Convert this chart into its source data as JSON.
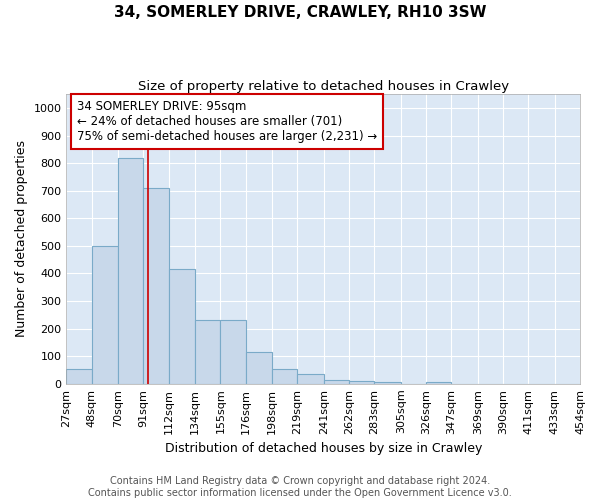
{
  "title": "34, SOMERLEY DRIVE, CRAWLEY, RH10 3SW",
  "subtitle": "Size of property relative to detached houses in Crawley",
  "xlabel": "Distribution of detached houses by size in Crawley",
  "ylabel": "Number of detached properties",
  "bin_labels": [
    "27sqm",
    "48sqm",
    "70sqm",
    "91sqm",
    "112sqm",
    "134sqm",
    "155sqm",
    "176sqm",
    "198sqm",
    "219sqm",
    "241sqm",
    "262sqm",
    "283sqm",
    "305sqm",
    "326sqm",
    "347sqm",
    "369sqm",
    "390sqm",
    "411sqm",
    "433sqm",
    "454sqm"
  ],
  "bin_edges": [
    27,
    48,
    70,
    91,
    112,
    134,
    155,
    176,
    198,
    219,
    241,
    262,
    283,
    305,
    326,
    347,
    369,
    390,
    411,
    433,
    454
  ],
  "bar_heights": [
    55,
    500,
    820,
    710,
    415,
    230,
    230,
    115,
    55,
    35,
    15,
    10,
    5,
    0,
    5,
    0,
    0,
    0,
    0,
    0
  ],
  "bar_color": "#c8d8ea",
  "bar_edge_color": "#7aaac8",
  "property_size": 95,
  "red_line_color": "#cc0000",
  "ylim": [
    0,
    1050
  ],
  "yticks": [
    0,
    100,
    200,
    300,
    400,
    500,
    600,
    700,
    800,
    900,
    1000
  ],
  "annotation_text": "34 SOMERLEY DRIVE: 95sqm\n← 24% of detached houses are smaller (701)\n75% of semi-detached houses are larger (2,231) →",
  "annotation_box_color": "#ffffff",
  "annotation_box_edge": "#cc0000",
  "footer_line1": "Contains HM Land Registry data © Crown copyright and database right 2024.",
  "footer_line2": "Contains public sector information licensed under the Open Government Licence v3.0.",
  "fig_background_color": "#ffffff",
  "plot_bg_color": "#dce8f5",
  "grid_color": "#ffffff",
  "title_fontsize": 11,
  "subtitle_fontsize": 9.5,
  "axis_label_fontsize": 9,
  "tick_fontsize": 8,
  "annotation_fontsize": 8.5,
  "footer_fontsize": 7
}
